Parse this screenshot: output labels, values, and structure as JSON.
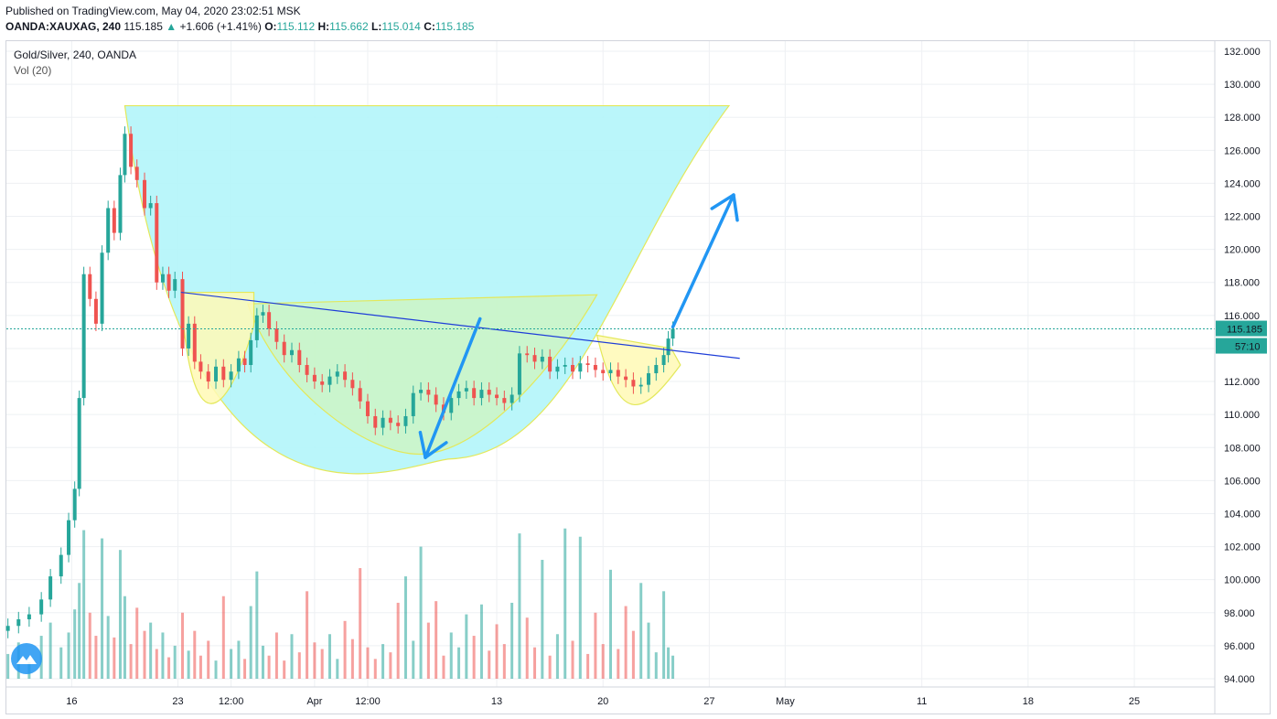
{
  "header": {
    "published": "Published on TradingView.com, May 04, 2020 23:02:51 MSK",
    "symbol": "OANDA:XAUXAG, 240",
    "last": "115.185",
    "change_arrow": "▲",
    "change": "+1.606 (+1.41%)",
    "o_label": "O:",
    "o_value": "115.112",
    "h_label": "H:",
    "h_value": "115.662",
    "l_label": "L:",
    "l_value": "115.014",
    "c_label": "C:",
    "c_value": "115.185"
  },
  "legend": {
    "title": "Gold/Silver, 240, OANDA",
    "volume": "Vol (20)"
  },
  "price_badge": {
    "price": "115.185",
    "countdown": "57:10",
    "color": "#26a69a"
  },
  "icons": {
    "logo": "tradingview-logo-icon"
  },
  "colors": {
    "up": "#26a69a",
    "down": "#ef5350",
    "cup_fill": "#b2f5f9",
    "inner_fill": "#ccf5c4",
    "handle_fill": "#fff9b5",
    "neckline": "#1e3dd8",
    "arrow": "#2196f3"
  },
  "chart_data": {
    "type": "candlestick",
    "title": "Gold/Silver, 240, OANDA",
    "xlabel": "",
    "ylabel": "",
    "ylim": [
      94,
      132
    ],
    "y_ticks": [
      "94.000",
      "96.000",
      "98.000",
      "100.000",
      "102.000",
      "104.000",
      "106.000",
      "108.000",
      "110.000",
      "112.000",
      "114.000",
      "116.000",
      "118.000",
      "120.000",
      "122.000",
      "124.000",
      "126.000",
      "128.000",
      "130.000",
      "132.000"
    ],
    "x_ticks": [
      "16",
      "23",
      "12:00",
      "Apr",
      "12:00",
      "13",
      "20",
      "27",
      "May",
      "11",
      "18",
      "25"
    ],
    "x_tick_days": [
      16,
      23,
      26.5,
      32,
      35.5,
      44,
      51,
      58,
      63,
      72,
      79,
      86
    ],
    "x_range_days": [
      11.7,
      91.3
    ],
    "grid": true,
    "candles_day_offsets_description": "x in days since Mar 1 2020",
    "price_path": [
      [
        11.8,
        97.2
      ],
      [
        12.5,
        97.6
      ],
      [
        13.2,
        97.9
      ],
      [
        14.0,
        98.8
      ],
      [
        14.6,
        100.2
      ],
      [
        15.3,
        101.5
      ],
      [
        15.8,
        103.6
      ],
      [
        16.2,
        105.5
      ],
      [
        16.5,
        111.0
      ],
      [
        16.8,
        118.5
      ],
      [
        17.2,
        117.0
      ],
      [
        17.6,
        115.5
      ],
      [
        18.0,
        119.8
      ],
      [
        18.4,
        122.5
      ],
      [
        18.8,
        121.0
      ],
      [
        19.2,
        124.5
      ],
      [
        19.5,
        127.0
      ],
      [
        19.9,
        125.0
      ],
      [
        20.3,
        124.2
      ],
      [
        20.8,
        122.5
      ],
      [
        21.2,
        122.8
      ],
      [
        21.6,
        118.0
      ],
      [
        22.0,
        118.5
      ],
      [
        22.4,
        117.5
      ],
      [
        22.8,
        118.2
      ],
      [
        23.3,
        114.0
      ],
      [
        23.7,
        115.5
      ],
      [
        24.1,
        113.2
      ],
      [
        24.5,
        112.6
      ],
      [
        25.0,
        112.0
      ],
      [
        25.5,
        112.9
      ],
      [
        26.0,
        112.1
      ],
      [
        26.5,
        112.6
      ],
      [
        27.0,
        113.4
      ],
      [
        27.4,
        113.0
      ],
      [
        27.8,
        114.5
      ],
      [
        28.2,
        116.0
      ],
      [
        28.6,
        116.2
      ],
      [
        29.0,
        115.2
      ],
      [
        29.5,
        114.4
      ],
      [
        30.0,
        113.6
      ],
      [
        30.5,
        113.9
      ],
      [
        31.0,
        113.0
      ],
      [
        31.5,
        112.4
      ],
      [
        32.0,
        112.0
      ],
      [
        32.5,
        111.8
      ],
      [
        33.0,
        112.3
      ],
      [
        33.5,
        112.6
      ],
      [
        34.0,
        112.1
      ],
      [
        34.5,
        111.6
      ],
      [
        35.0,
        110.8
      ],
      [
        35.5,
        109.9
      ],
      [
        36.0,
        109.2
      ],
      [
        36.5,
        109.8
      ],
      [
        37.0,
        109.5
      ],
      [
        37.5,
        109.3
      ],
      [
        38.0,
        109.9
      ],
      [
        38.5,
        111.3
      ],
      [
        39.0,
        111.5
      ],
      [
        39.5,
        111.2
      ],
      [
        40.0,
        110.6
      ],
      [
        40.5,
        110.1
      ],
      [
        41.0,
        111.0
      ],
      [
        41.5,
        111.4
      ],
      [
        42.0,
        111.6
      ],
      [
        42.5,
        111.0
      ],
      [
        43.0,
        111.5
      ],
      [
        43.5,
        111.2
      ],
      [
        44.0,
        111.0
      ],
      [
        44.5,
        110.7
      ],
      [
        45.0,
        111.2
      ],
      [
        45.5,
        113.7
      ],
      [
        46.0,
        113.6
      ],
      [
        46.5,
        113.2
      ],
      [
        47.0,
        113.5
      ],
      [
        47.5,
        112.6
      ],
      [
        48.0,
        112.9
      ],
      [
        48.5,
        113.0
      ],
      [
        49.0,
        112.6
      ],
      [
        49.5,
        113.1
      ],
      [
        50.0,
        113.0
      ],
      [
        50.5,
        112.7
      ],
      [
        51.0,
        112.5
      ],
      [
        51.5,
        112.7
      ],
      [
        52.0,
        112.3
      ],
      [
        52.5,
        112.1
      ],
      [
        53.0,
        111.7
      ],
      [
        53.5,
        111.8
      ],
      [
        54.0,
        112.5
      ],
      [
        54.5,
        113.0
      ],
      [
        55.0,
        113.6
      ],
      [
        55.3,
        114.6
      ],
      [
        55.6,
        115.185
      ]
    ],
    "volume_path": [
      [
        11.8,
        95.5
      ],
      [
        12.5,
        96.2
      ],
      [
        13.2,
        95.0
      ],
      [
        14.0,
        96.6
      ],
      [
        14.6,
        97.4
      ],
      [
        15.3,
        95.9
      ],
      [
        15.8,
        96.8
      ],
      [
        16.2,
        98.2
      ],
      [
        16.5,
        99.8
      ],
      [
        16.8,
        103.0
      ],
      [
        17.2,
        98.0
      ],
      [
        17.6,
        96.6
      ],
      [
        18.0,
        102.5
      ],
      [
        18.4,
        97.8
      ],
      [
        18.8,
        96.5
      ],
      [
        19.2,
        101.8
      ],
      [
        19.5,
        99.0
      ],
      [
        19.9,
        96.1
      ],
      [
        20.3,
        98.3
      ],
      [
        20.8,
        96.9
      ],
      [
        21.2,
        97.4
      ],
      [
        21.6,
        95.8
      ],
      [
        22.0,
        96.8
      ],
      [
        22.4,
        95.3
      ],
      [
        22.8,
        96.0
      ],
      [
        23.3,
        98.0
      ],
      [
        23.7,
        95.7
      ],
      [
        24.1,
        96.9
      ],
      [
        24.5,
        95.4
      ],
      [
        25.0,
        96.3
      ],
      [
        25.5,
        95.1
      ],
      [
        26.0,
        99.0
      ],
      [
        26.5,
        95.8
      ],
      [
        27.0,
        96.3
      ],
      [
        27.4,
        95.2
      ],
      [
        27.8,
        98.4
      ],
      [
        28.2,
        100.5
      ],
      [
        28.6,
        96.0
      ],
      [
        29.0,
        95.4
      ],
      [
        29.5,
        96.8
      ],
      [
        30.0,
        95.1
      ],
      [
        30.5,
        96.7
      ],
      [
        31.0,
        95.6
      ],
      [
        31.5,
        99.3
      ],
      [
        32.0,
        96.2
      ],
      [
        32.5,
        95.8
      ],
      [
        33.0,
        96.7
      ],
      [
        33.5,
        95.2
      ],
      [
        34.0,
        97.5
      ],
      [
        34.5,
        96.4
      ],
      [
        35.0,
        100.7
      ],
      [
        35.5,
        95.9
      ],
      [
        36.0,
        95.2
      ],
      [
        36.5,
        96.1
      ],
      [
        37.0,
        95.6
      ],
      [
        37.5,
        98.6
      ],
      [
        38.0,
        100.2
      ],
      [
        38.5,
        96.3
      ],
      [
        39.0,
        102.0
      ],
      [
        39.5,
        97.4
      ],
      [
        40.0,
        98.7
      ],
      [
        40.5,
        95.4
      ],
      [
        41.0,
        96.8
      ],
      [
        41.5,
        95.9
      ],
      [
        42.0,
        97.9
      ],
      [
        42.5,
        96.6
      ],
      [
        43.0,
        98.5
      ],
      [
        43.5,
        95.7
      ],
      [
        44.0,
        97.3
      ],
      [
        44.5,
        96.1
      ],
      [
        45.0,
        98.6
      ],
      [
        45.5,
        102.8
      ],
      [
        46.0,
        97.7
      ],
      [
        46.5,
        95.9
      ],
      [
        47.0,
        101.2
      ],
      [
        47.5,
        95.4
      ],
      [
        48.0,
        96.7
      ],
      [
        48.5,
        103.1
      ],
      [
        49.0,
        96.3
      ],
      [
        49.5,
        102.6
      ],
      [
        50.0,
        95.5
      ],
      [
        50.5,
        98.0
      ],
      [
        51.0,
        96.1
      ],
      [
        51.5,
        100.6
      ],
      [
        52.0,
        95.8
      ],
      [
        52.5,
        98.4
      ],
      [
        53.0,
        96.9
      ],
      [
        53.5,
        99.8
      ],
      [
        54.0,
        97.4
      ],
      [
        54.5,
        95.6
      ],
      [
        55.0,
        99.3
      ],
      [
        55.3,
        95.9
      ],
      [
        55.6,
        95.4
      ]
    ],
    "annotations": {
      "neckline": [
        [
          23.2,
          117.4
        ],
        [
          58.2,
          113.6
        ]
      ],
      "arrow_down": [
        [
          42.9,
          115.8
        ],
        [
          39.3,
          107.4
        ]
      ],
      "arrow_up": [
        [
          55.6,
          115.3
        ],
        [
          59.6,
          123.3
        ]
      ]
    }
  }
}
